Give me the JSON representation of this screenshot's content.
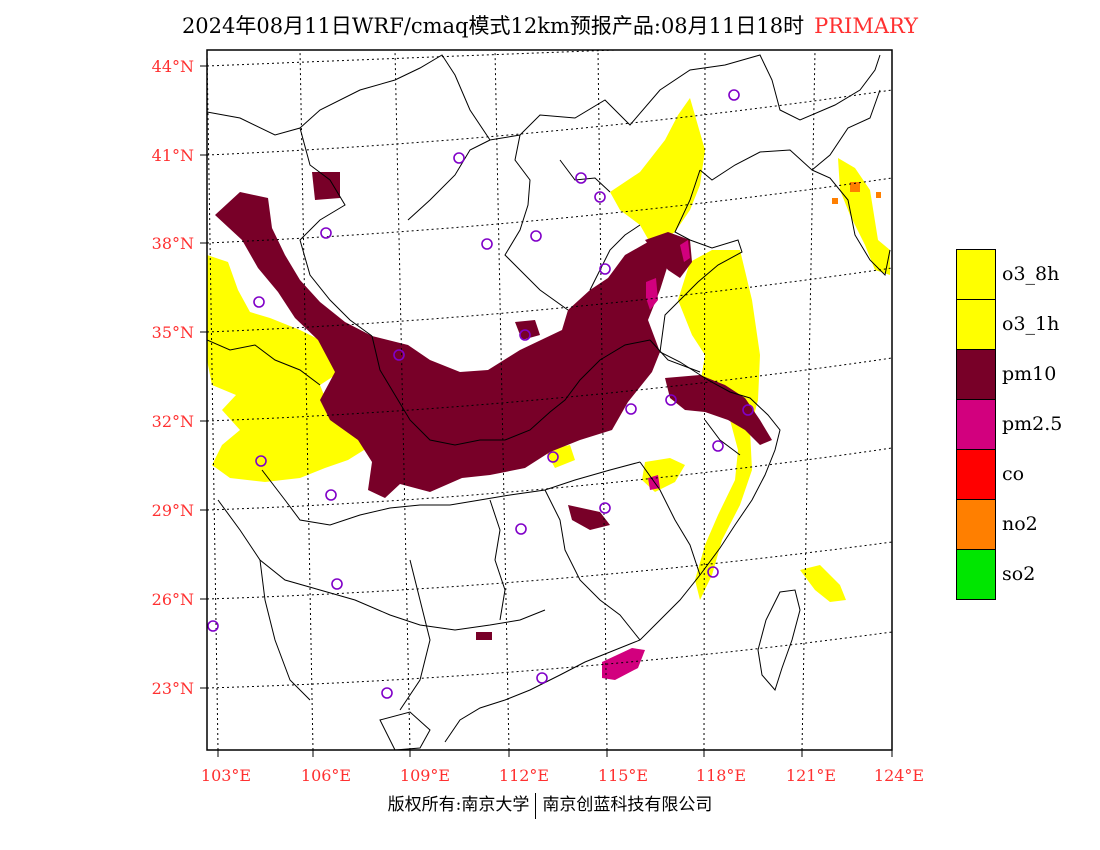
{
  "header": {
    "title": "2024年08月11日WRF/cmaq模式12km预报产品:08月11日18时",
    "pollutant_tag": "PRIMARY"
  },
  "map": {
    "lat_labels": [
      "44°N",
      "41°N",
      "38°N",
      "35°N",
      "32°N",
      "29°N",
      "26°N",
      "23°N"
    ],
    "lon_labels": [
      "103°E",
      "106°E",
      "109°E",
      "112°E",
      "115°E",
      "118°E",
      "121°E",
      "124°E"
    ],
    "colors": {
      "o3_8h": "#ffff00",
      "o3_1h": "#ffff00",
      "pm10": "#780028",
      "pm25": "#d2007e",
      "co": "#ff0000",
      "no2": "#ff7f00",
      "so2": "#00e600",
      "station": "#8000c8",
      "label": "#ff3030"
    }
  },
  "legend": {
    "items": [
      {
        "label": "o3_8h",
        "color": "#ffff00"
      },
      {
        "label": "o3_1h",
        "color": "#ffff00"
      },
      {
        "label": "pm10",
        "color": "#780028"
      },
      {
        "label": "pm2.5",
        "color": "#d2007e"
      },
      {
        "label": "co",
        "color": "#ff0000"
      },
      {
        "label": "no2",
        "color": "#ff7f00"
      },
      {
        "label": "so2",
        "color": "#00e600"
      }
    ]
  },
  "footer": {
    "left": "版权所有:南京大学",
    "right": "南京创蓝科技有限公司"
  }
}
